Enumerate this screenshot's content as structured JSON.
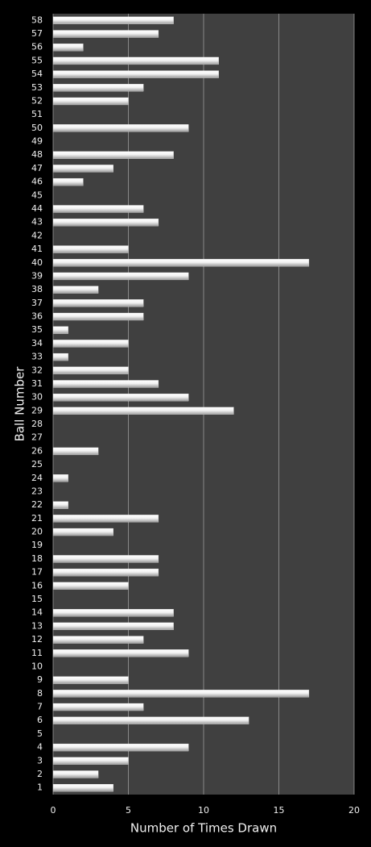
{
  "chart_data": {
    "type": "barh",
    "xlabel": "Number of Times Drawn",
    "ylabel": "Ball Number",
    "categories": [
      "1",
      "2",
      "3",
      "4",
      "5",
      "6",
      "7",
      "8",
      "9",
      "10",
      "11",
      "12",
      "13",
      "14",
      "15",
      "16",
      "17",
      "18",
      "19",
      "20",
      "21",
      "22",
      "23",
      "24",
      "25",
      "26",
      "27",
      "28",
      "29",
      "30",
      "31",
      "32",
      "33",
      "34",
      "35",
      "36",
      "37",
      "38",
      "39",
      "40",
      "41",
      "42",
      "43",
      "44",
      "45",
      "46",
      "47",
      "48",
      "49",
      "50",
      "51",
      "52",
      "53",
      "54",
      "55",
      "56",
      "57",
      "58"
    ],
    "values": [
      4,
      3,
      5,
      9,
      0,
      13,
      6,
      17,
      5,
      0,
      9,
      6,
      8,
      8,
      0,
      5,
      7,
      7,
      0,
      4,
      7,
      1,
      0,
      1,
      0,
      3,
      0,
      0,
      12,
      9,
      7,
      5,
      1,
      5,
      1,
      6,
      6,
      3,
      9,
      17,
      5,
      0,
      7,
      6,
      0,
      2,
      4,
      8,
      0,
      9,
      0,
      5,
      6,
      11,
      11,
      2,
      7,
      8
    ],
    "color": "#e8e8e8",
    "xlim": [
      0,
      20
    ],
    "xticks": [
      0,
      5,
      10,
      15,
      20
    ],
    "grid": true
  }
}
